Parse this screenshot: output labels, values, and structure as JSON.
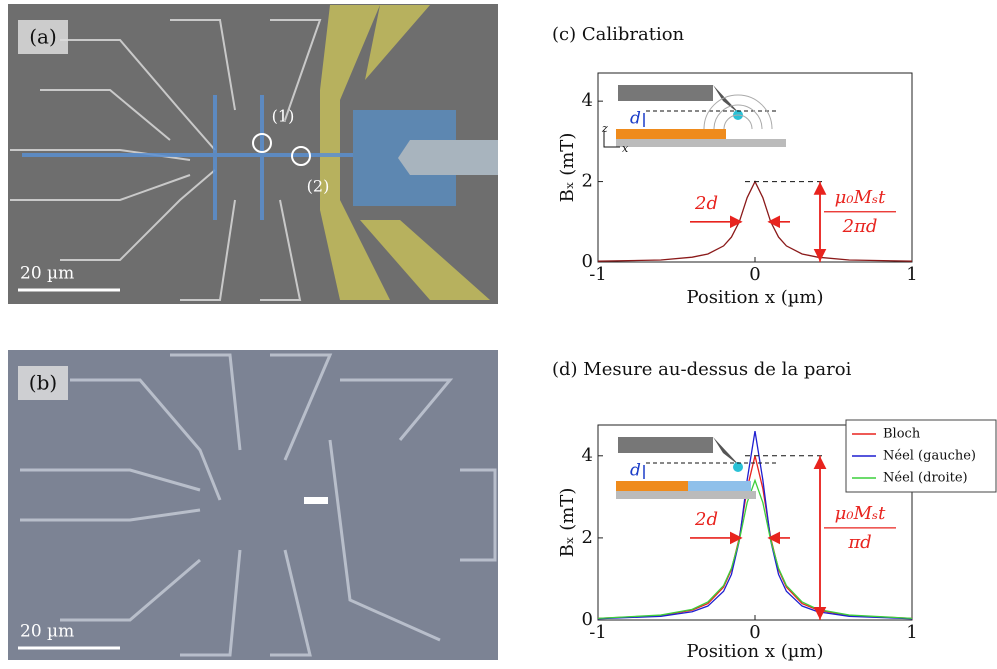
{
  "panels": {
    "a": {
      "label": "(a)",
      "scale_bar": "20 µm",
      "markers": [
        "(1)",
        "(2)"
      ]
    },
    "b": {
      "label": "(b)",
      "scale_bar": "20 µm"
    }
  },
  "chart_data": [
    {
      "type": "line",
      "title": "(c)  Calibration",
      "x_label": "Position x (µm)",
      "y_label": "Bₓ (mT)",
      "x": [
        -1,
        -0.6,
        -0.4,
        -0.3,
        -0.2,
        -0.15,
        -0.1,
        -0.05,
        0,
        0.05,
        0.1,
        0.15,
        0.2,
        0.3,
        0.4,
        0.6,
        1
      ],
      "values": [
        0.02,
        0.05,
        0.12,
        0.2,
        0.4,
        0.62,
        1.0,
        1.6,
        2.0,
        1.6,
        1.0,
        0.62,
        0.4,
        0.2,
        0.12,
        0.05,
        0.02
      ],
      "color": "#8b1a1a",
      "xlim": [
        -1,
        1
      ],
      "ylim": [
        0,
        4.7
      ],
      "xticks": [
        -1,
        0,
        1
      ],
      "yticks": [
        0,
        2,
        4
      ],
      "annotations": {
        "width": "2d",
        "numerator": "μ₀Mₛt",
        "denominator": "2πd",
        "d": "d",
        "z": "z",
        "x": "x"
      }
    },
    {
      "type": "line",
      "title": "(d) Mesure au-dessus de la paroi",
      "x_label": "Position x (µm)",
      "y_label": "Bₓ (mT)",
      "x": [
        -1,
        -0.6,
        -0.4,
        -0.3,
        -0.2,
        -0.15,
        -0.1,
        -0.05,
        0,
        0.05,
        0.1,
        0.15,
        0.2,
        0.3,
        0.4,
        0.6,
        1
      ],
      "series": [
        {
          "name": "Bloch",
          "color": "#e8231e",
          "values": [
            0.04,
            0.11,
            0.24,
            0.4,
            0.8,
            1.23,
            2.0,
            3.2,
            4.0,
            3.2,
            2.0,
            1.23,
            0.8,
            0.4,
            0.24,
            0.11,
            0.04
          ]
        },
        {
          "name": "Néel (gauche)",
          "color": "#1f1fd0",
          "values": [
            0.03,
            0.09,
            0.2,
            0.34,
            0.7,
            1.11,
            1.93,
            3.41,
            4.6,
            3.41,
            1.93,
            1.11,
            0.7,
            0.34,
            0.2,
            0.09,
            0.03
          ]
        },
        {
          "name": "Néel (droite)",
          "color": "#3ccf3c",
          "values": [
            0.04,
            0.12,
            0.26,
            0.44,
            0.84,
            1.26,
            1.94,
            2.86,
            3.4,
            2.86,
            1.94,
            1.26,
            0.84,
            0.44,
            0.26,
            0.12,
            0.04
          ]
        }
      ],
      "xlim": [
        -1,
        1
      ],
      "ylim": [
        0,
        4.75
      ],
      "xticks": [
        -1,
        0,
        1
      ],
      "yticks": [
        0,
        2,
        4
      ],
      "annotations": {
        "width": "2d",
        "numerator": "μ₀Mₛt",
        "denominator": "πd",
        "d": "d"
      }
    }
  ]
}
